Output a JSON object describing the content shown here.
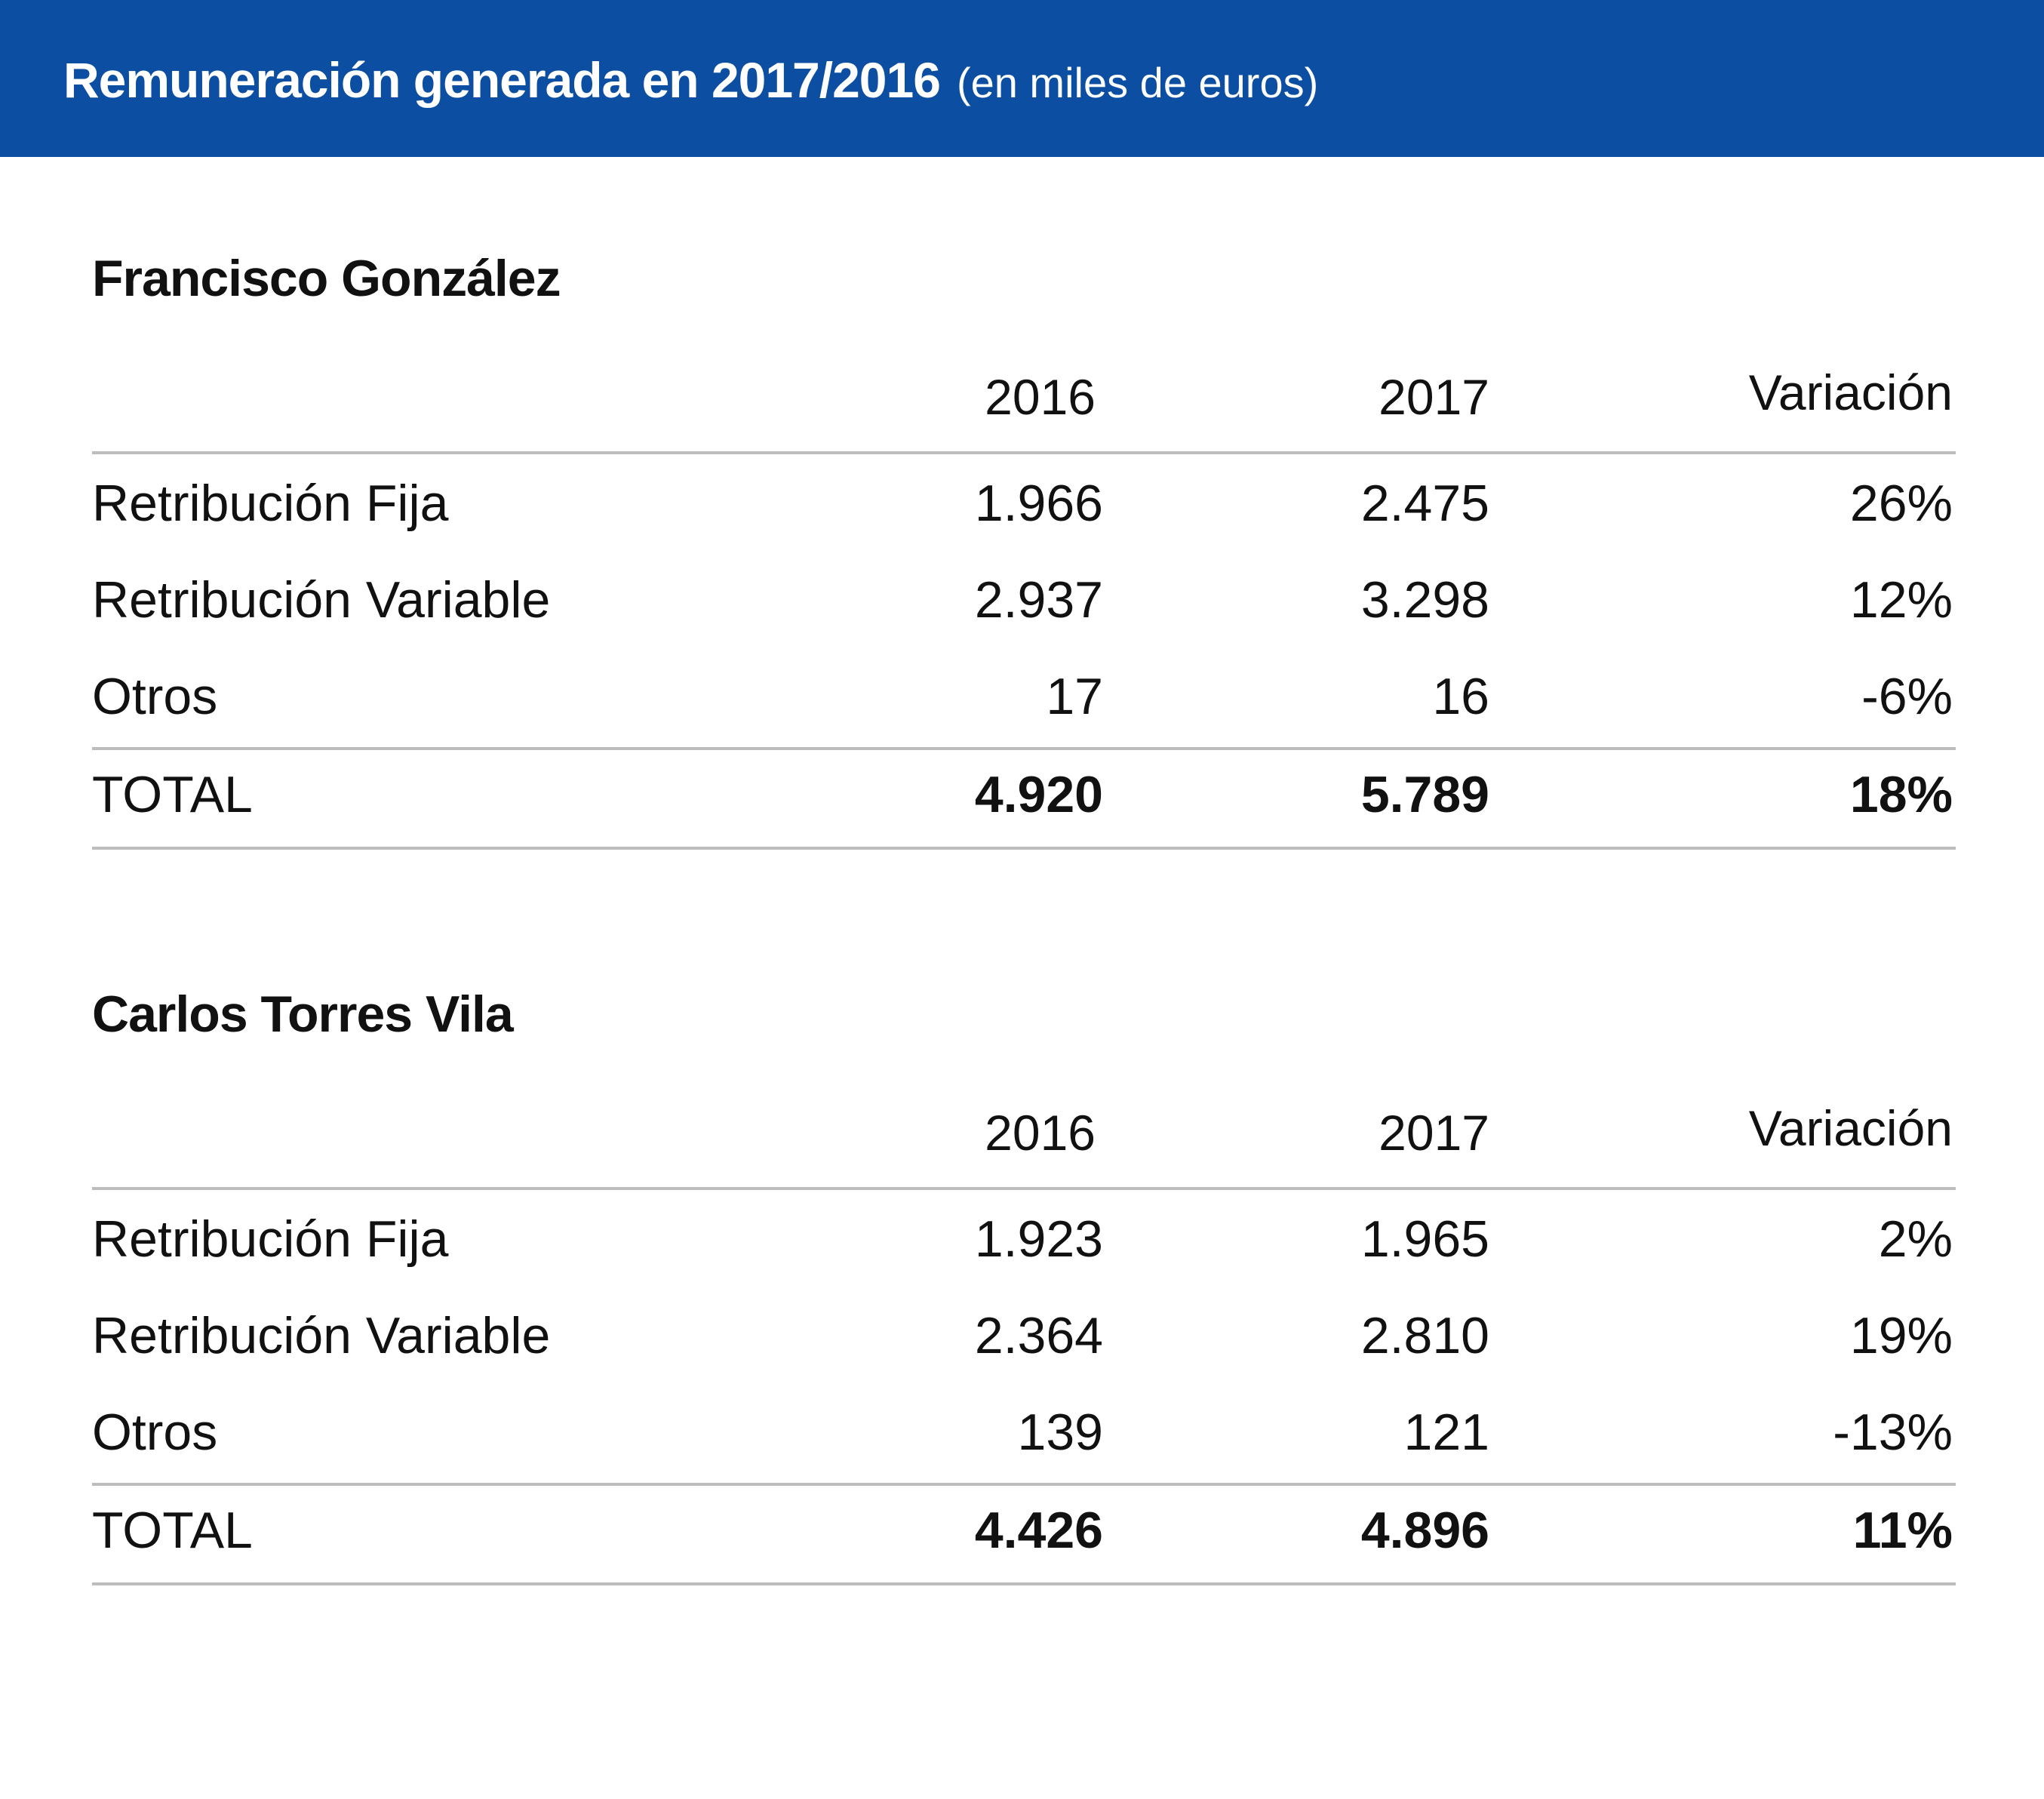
{
  "header": {
    "title": "Remuneración generada en 2017/2016",
    "subtitle": "(en miles de euros)",
    "background_color": "#0b4ea2"
  },
  "columns": [
    "2016",
    "2017",
    "Variación"
  ],
  "sections": [
    {
      "name": "Francisco González",
      "rows": [
        {
          "label": "Retribución Fija",
          "y2016": "1.966",
          "y2017": "2.475",
          "variation": "26%"
        },
        {
          "label": "Retribución Variable",
          "y2016": "2.937",
          "y2017": "3.298",
          "variation": "12%"
        },
        {
          "label": "Otros",
          "y2016": "17",
          "y2017": "16",
          "variation": "-6%"
        }
      ],
      "total": {
        "label": "TOTAL",
        "y2016": "4.920",
        "y2017": "5.789",
        "variation": "18%"
      }
    },
    {
      "name": "Carlos Torres Vila",
      "rows": [
        {
          "label": "Retribución Fija",
          "y2016": "1.923",
          "y2017": "1.965",
          "variation": "2%"
        },
        {
          "label": "Retribución Variable",
          "y2016": "2.364",
          "y2017": "2.810",
          "variation": "19%"
        },
        {
          "label": "Otros",
          "y2016": "139",
          "y2017": "121",
          "variation": "-13%"
        }
      ],
      "total": {
        "label": "TOTAL",
        "y2016": "4.426",
        "y2017": "4.896",
        "variation": "11%"
      }
    }
  ]
}
